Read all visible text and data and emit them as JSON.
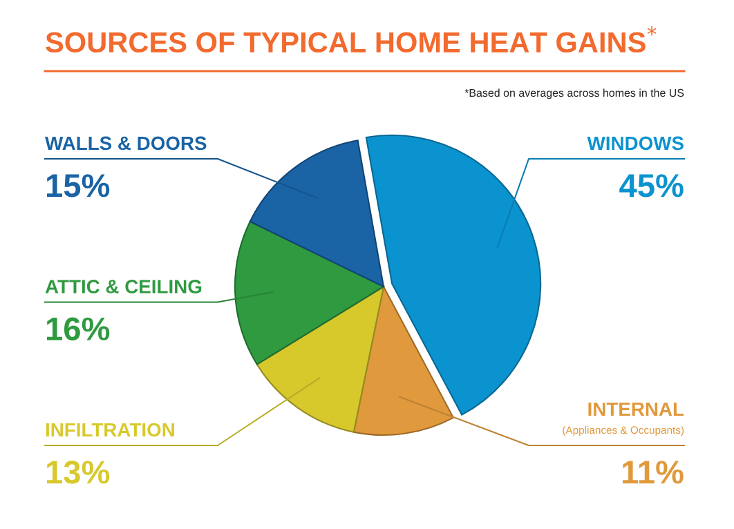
{
  "chart_data": {
    "type": "pie",
    "title": "SOURCES OF TYPICAL HOME HEAT GAINS$^{*}$",
    "subtitle": "*Based on averages across homes in the US",
    "categories": [
      "WINDOWS",
      "INTERNAL\n(Appliances & Occupants)",
      "INFILTRATION",
      "ATTIC & CEILING",
      "WALLS & DOORS"
    ],
    "values": [
      45,
      11,
      13,
      16,
      15
    ],
    "colors": [
      "#0b93d0",
      "#e0993c",
      "#d7c92c",
      "#2f9a40",
      "#1a63a5"
    ],
    "value_labels": [
      "45%",
      "11%",
      "13%",
      "16%",
      "15%"
    ]
  }
}
